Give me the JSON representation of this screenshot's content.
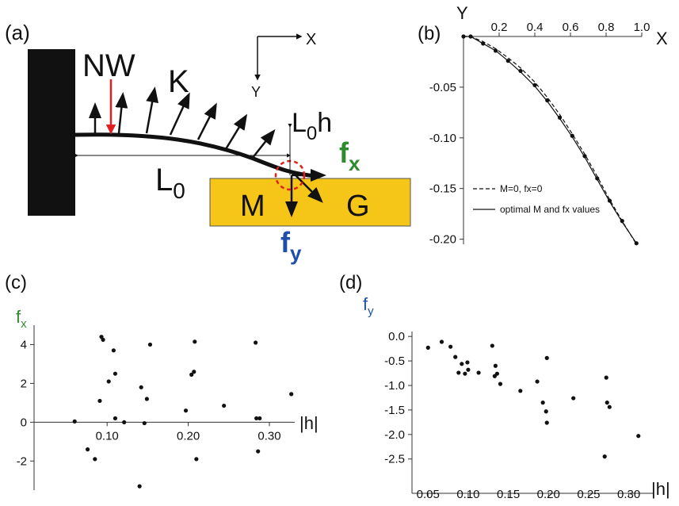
{
  "diagram": {
    "panel_label": "(a)",
    "nw": "NW",
    "k": "K",
    "axis_x": "X",
    "axis_y": "Y",
    "l0h": {
      "base": "L",
      "sub": "0",
      "after": "h"
    },
    "fx": {
      "base": "f",
      "sub": "x"
    },
    "l0": {
      "base": "L",
      "sub": "0"
    },
    "m": "M",
    "g": "G",
    "fy": {
      "base": "f",
      "sub": "y"
    }
  },
  "chart_data": [
    {
      "type": "line",
      "panel_label": "(b)",
      "x_label": "X",
      "y_label": "Y",
      "x": [
        0,
        0.04,
        0.11,
        0.18,
        0.25,
        0.32,
        0.4,
        0.47,
        0.54,
        0.61,
        0.68,
        0.75,
        0.82,
        0.89,
        0.97
      ],
      "series": [
        {
          "style": "markers",
          "color": "#111",
          "values": [
            0,
            0,
            -0.007,
            -0.014,
            -0.024,
            -0.034,
            -0.048,
            -0.063,
            -0.08,
            -0.098,
            -0.118,
            -0.14,
            -0.162,
            -0.182,
            -0.204
          ]
        },
        {
          "name": "M=0, fx=0",
          "style": "dashed",
          "color": "#111",
          "values": [
            0,
            0,
            -0.005,
            -0.012,
            -0.021,
            -0.031,
            -0.045,
            -0.06,
            -0.077,
            -0.096,
            -0.116,
            -0.138,
            -0.161,
            -0.182,
            -0.205
          ]
        },
        {
          "name": "optimal M and fx values",
          "style": "solid",
          "color": "#111",
          "values": [
            0,
            0,
            -0.007,
            -0.014,
            -0.024,
            -0.035,
            -0.049,
            -0.064,
            -0.081,
            -0.099,
            -0.119,
            -0.141,
            -0.163,
            -0.183,
            -0.204
          ]
        }
      ],
      "xlim": [
        0,
        1.0
      ],
      "ylim": [
        -0.205,
        0
      ],
      "xticks": [
        0.2,
        0.4,
        0.6,
        0.8,
        {
          "value": 1.0,
          "label": "1.0"
        }
      ],
      "yticks": [
        -0.05,
        {
          "value": -0.1,
          "label": "-0.10"
        },
        -0.15,
        {
          "value": -0.2,
          "label": "-0.20"
        }
      ],
      "legend": "lower left"
    },
    {
      "type": "scatter",
      "panel_label": "(c)",
      "x_label": "|h|",
      "y_label": {
        "base": "f",
        "sub": "x"
      },
      "y_label_color": "#2e8b2e",
      "color": "#111",
      "x": [
        0.06,
        0.076,
        0.085,
        0.091,
        0.093,
        0.095,
        0.102,
        0.108,
        0.11,
        0.11,
        0.121,
        0.14,
        0.142,
        0.146,
        0.149,
        0.153,
        0.197,
        0.204,
        0.207,
        0.208,
        0.21,
        0.244,
        0.283,
        0.284,
        0.288,
        0.286,
        0.327
      ],
      "y": [
        0.04,
        -1.4,
        -1.9,
        1.1,
        4.4,
        4.25,
        2.1,
        3.7,
        2.5,
        0.2,
        0.0,
        -3.3,
        1.8,
        -0.05,
        1.2,
        4.0,
        0.6,
        2.45,
        2.6,
        4.15,
        -1.9,
        0.85,
        4.1,
        0.2,
        0.2,
        -1.5,
        1.45
      ],
      "xlim": [
        0.01,
        0.34
      ],
      "ylim": [
        -3.5,
        5
      ],
      "xticks": [
        {
          "value": 0.1,
          "label": "0.10"
        },
        {
          "value": 0.2,
          "label": "0.20"
        },
        {
          "value": 0.3,
          "label": "0.30"
        }
      ],
      "yticks": [
        -2,
        0,
        2,
        4
      ]
    },
    {
      "type": "scatter",
      "panel_label": "(d)",
      "x_label": "|h|",
      "y_label": {
        "base": "f",
        "sub": "y"
      },
      "y_label_color": "#1f4fa8",
      "color": "#111",
      "x": [
        0.05,
        0.067,
        0.078,
        0.084,
        0.088,
        0.092,
        0.096,
        0.099,
        0.1,
        0.113,
        0.13,
        0.134,
        0.133,
        0.136,
        0.14,
        0.165,
        0.186,
        0.193,
        0.197,
        0.198,
        0.198,
        0.231,
        0.272,
        0.273,
        0.276,
        0.27,
        0.312
      ],
      "y": [
        -0.23,
        -0.11,
        -0.21,
        -0.42,
        -0.74,
        -0.56,
        -0.76,
        -0.53,
        -0.68,
        -0.74,
        -0.19,
        -0.6,
        -0.81,
        -0.76,
        -0.97,
        -1.11,
        -0.92,
        -1.35,
        -1.53,
        -1.76,
        -0.44,
        -1.26,
        -0.84,
        -1.35,
        -1.44,
        -2.45,
        -2.03
      ],
      "xlim": [
        0.03,
        0.33
      ],
      "ylim": [
        -3.2,
        0.1
      ],
      "xticks": [
        0.05,
        {
          "value": 0.1,
          "label": "0.10"
        },
        0.15,
        {
          "value": 0.2,
          "label": "0.20"
        },
        0.25,
        {
          "value": 0.3,
          "label": "0.30"
        }
      ],
      "yticks": [
        {
          "value": 0,
          "label": "0.0"
        },
        -0.5,
        {
          "value": -1,
          "label": "-1.0"
        },
        -1.5,
        {
          "value": -2,
          "label": "-2.0"
        },
        -2.5
      ]
    }
  ]
}
